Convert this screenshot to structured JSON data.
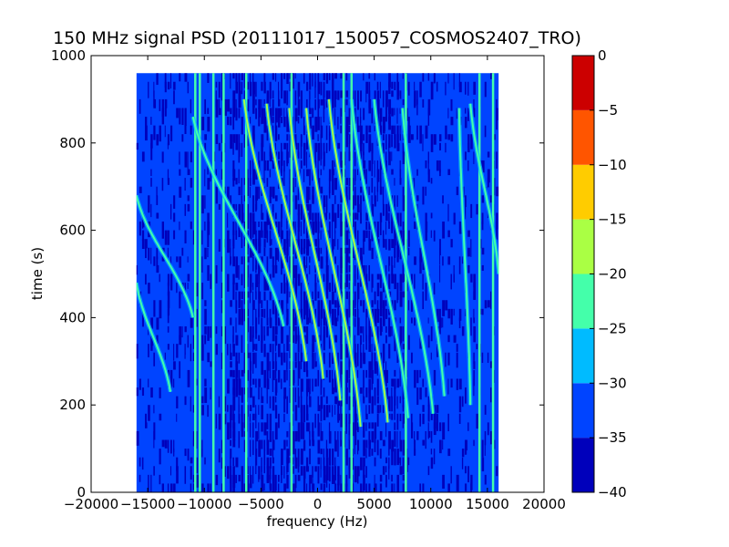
{
  "chart_data": {
    "type": "heatmap",
    "title": "150 MHz signal PSD (20111017_150057_COSMOS2407_TRO)",
    "xlabel": "frequency (Hz)",
    "ylabel": "time (s)",
    "xlim": [
      -20000,
      20000
    ],
    "ylim": [
      0,
      1000
    ],
    "xticks": [
      -20000,
      -15000,
      -10000,
      -5000,
      0,
      5000,
      10000,
      15000,
      20000
    ],
    "yticks": [
      0,
      200,
      400,
      600,
      800,
      1000
    ],
    "xtick_labels": [
      "−20000",
      "−15000",
      "−10000",
      "−5000",
      "0",
      "5000",
      "10000",
      "15000",
      "20000"
    ],
    "ytick_labels": [
      "0",
      "200",
      "400",
      "600",
      "800",
      "1000"
    ],
    "data_extent": {
      "x": [
        -16000,
        16000
      ],
      "y": [
        0,
        960
      ]
    },
    "colorbar": {
      "levels": [
        -40,
        -35,
        -30,
        -25,
        -20,
        -15,
        -10,
        -5,
        0
      ],
      "tick_labels": [
        "−40",
        "−35",
        "−30",
        "−25",
        "−20",
        "−15",
        "−10",
        "−5",
        "0"
      ],
      "colors": [
        "#0000bb",
        "#0044ff",
        "#00bbff",
        "#44ffaa",
        "#aaff44",
        "#ffcc00",
        "#ff5500",
        "#cc0000"
      ]
    },
    "background_level_band": [
      -35,
      -30
    ],
    "vertical_lines_hz": [
      -10800,
      -10400,
      -9200,
      -8300,
      -6300,
      -2300,
      2300,
      3000,
      7800,
      14300,
      15500
    ],
    "doppler_traces": [
      {
        "t_start": 480,
        "t_end": 230,
        "f_start": -16000,
        "f_end": -13000
      },
      {
        "t_start": 680,
        "t_end": 400,
        "f_start": -16000,
        "f_end": -11000
      },
      {
        "t_start": 860,
        "t_end": 380,
        "f_start": -11000,
        "f_end": -3000
      },
      {
        "t_start": 900,
        "t_end": 300,
        "f_start": -6500,
        "f_end": -1000
      },
      {
        "t_start": 890,
        "t_end": 260,
        "f_start": -4500,
        "f_end": 500
      },
      {
        "t_start": 880,
        "t_end": 210,
        "f_start": -2500,
        "f_end": 2000
      },
      {
        "t_start": 880,
        "t_end": 150,
        "f_start": -1000,
        "f_end": 3800
      },
      {
        "t_start": 900,
        "t_end": 160,
        "f_start": 1000,
        "f_end": 6200
      },
      {
        "t_start": 900,
        "t_end": 170,
        "f_start": 3000,
        "f_end": 8000
      },
      {
        "t_start": 900,
        "t_end": 180,
        "f_start": 5000,
        "f_end": 10200
      },
      {
        "t_start": 880,
        "t_end": 220,
        "f_start": 7500,
        "f_end": 11200
      },
      {
        "t_start": 880,
        "t_end": 200,
        "f_start": 12500,
        "f_end": 13500
      },
      {
        "t_start": 890,
        "t_end": 500,
        "f_start": 13500,
        "f_end": 16000
      }
    ]
  }
}
